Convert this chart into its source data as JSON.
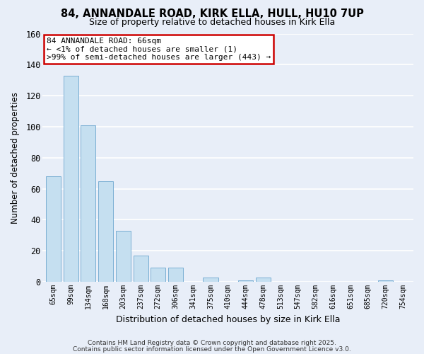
{
  "title": "84, ANNANDALE ROAD, KIRK ELLA, HULL, HU10 7UP",
  "subtitle": "Size of property relative to detached houses in Kirk Ella",
  "xlabel": "Distribution of detached houses by size in Kirk Ella",
  "ylabel": "Number of detached properties",
  "bar_color": "#c5dff0",
  "bar_edge_color": "#7bafd4",
  "highlight_edge_color": "#cc0000",
  "categories": [
    "65sqm",
    "99sqm",
    "134sqm",
    "168sqm",
    "203sqm",
    "237sqm",
    "272sqm",
    "306sqm",
    "341sqm",
    "375sqm",
    "410sqm",
    "444sqm",
    "478sqm",
    "513sqm",
    "547sqm",
    "582sqm",
    "616sqm",
    "651sqm",
    "685sqm",
    "720sqm",
    "754sqm"
  ],
  "values": [
    68,
    133,
    101,
    65,
    33,
    17,
    9,
    9,
    0,
    3,
    0,
    1,
    3,
    0,
    0,
    0,
    0,
    0,
    0,
    1,
    0
  ],
  "highlight_index": 0,
  "ylim": [
    0,
    160
  ],
  "yticks": [
    0,
    20,
    40,
    60,
    80,
    100,
    120,
    140,
    160
  ],
  "annotation_title": "84 ANNANDALE ROAD: 66sqm",
  "annotation_line1": "← <1% of detached houses are smaller (1)",
  "annotation_line2": ">99% of semi-detached houses are larger (443) →",
  "footer1": "Contains HM Land Registry data © Crown copyright and database right 2025.",
  "footer2": "Contains public sector information licensed under the Open Government Licence v3.0.",
  "background_color": "#e8eef8",
  "grid_color": "#ffffff",
  "title_fontsize": 10.5,
  "subtitle_fontsize": 9,
  "annotation_fontsize": 8,
  "xlabel_fontsize": 9,
  "ylabel_fontsize": 8.5,
  "footer_fontsize": 6.5
}
